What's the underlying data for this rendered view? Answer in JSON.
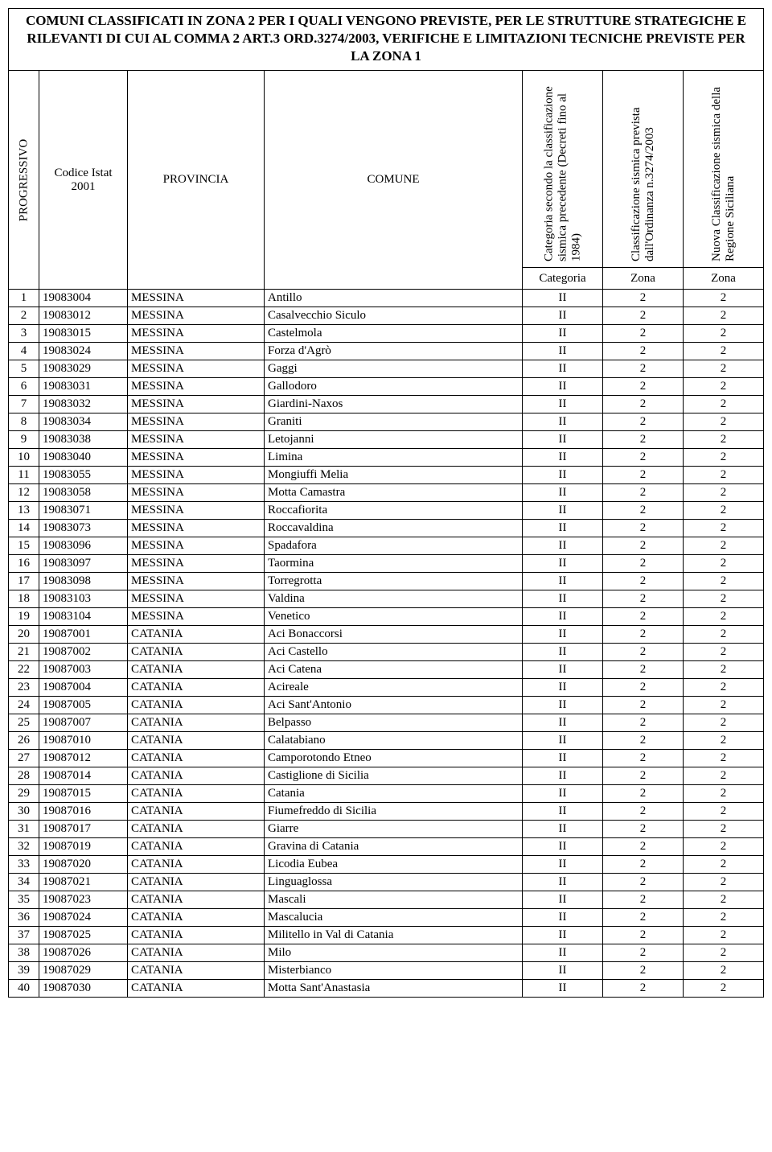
{
  "title": "COMUNI CLASSIFICATI IN  ZONA 2 PER I QUALI VENGONO PREVISTE, PER LE STRUTTURE STRATEGICHE E RILEVANTI DI CUI AL COMMA 2 ART.3 ORD.3274/2003, VERIFICHE  E LIMITAZIONI TECNICHE  PREVISTE PER LA ZONA 1",
  "headers": {
    "progressivo": "PROGRESSIVO",
    "codice": "Codice Istat 2001",
    "provincia": "PROVINCIA",
    "comune": "COMUNE",
    "categoria": "Categoria secondo la classificazione sismica precedente (Decreti fino al 1984)",
    "classificazione": "Classificazione sismica prevista dall'Ordinanza n.3274/2003",
    "nuova": "Nuova Classificazione sismica della Regione Siciliana"
  },
  "subheaders": {
    "categoria": "Categoria",
    "zona1": "Zona",
    "zona2": "Zona"
  },
  "rows": [
    {
      "n": "1",
      "codice": "19083004",
      "prov": "MESSINA",
      "comune": "Antillo",
      "cat": "II",
      "cl": "2",
      "nu": "2"
    },
    {
      "n": "2",
      "codice": "19083012",
      "prov": "MESSINA",
      "comune": "Casalvecchio Siculo",
      "cat": "II",
      "cl": "2",
      "nu": "2"
    },
    {
      "n": "3",
      "codice": "19083015",
      "prov": "MESSINA",
      "comune": "Castelmola",
      "cat": "II",
      "cl": "2",
      "nu": "2"
    },
    {
      "n": "4",
      "codice": "19083024",
      "prov": "MESSINA",
      "comune": "Forza d'Agrò",
      "cat": "II",
      "cl": "2",
      "nu": "2"
    },
    {
      "n": "5",
      "codice": "19083029",
      "prov": "MESSINA",
      "comune": "Gaggi",
      "cat": "II",
      "cl": "2",
      "nu": "2"
    },
    {
      "n": "6",
      "codice": "19083031",
      "prov": "MESSINA",
      "comune": "Gallodoro",
      "cat": "II",
      "cl": "2",
      "nu": "2"
    },
    {
      "n": "7",
      "codice": "19083032",
      "prov": "MESSINA",
      "comune": "Giardini-Naxos",
      "cat": "II",
      "cl": "2",
      "nu": "2"
    },
    {
      "n": "8",
      "codice": "19083034",
      "prov": "MESSINA",
      "comune": "Graniti",
      "cat": "II",
      "cl": "2",
      "nu": "2"
    },
    {
      "n": "9",
      "codice": "19083038",
      "prov": "MESSINA",
      "comune": "Letojanni",
      "cat": "II",
      "cl": "2",
      "nu": "2"
    },
    {
      "n": "10",
      "codice": "19083040",
      "prov": "MESSINA",
      "comune": "Limina",
      "cat": "II",
      "cl": "2",
      "nu": "2"
    },
    {
      "n": "11",
      "codice": "19083055",
      "prov": "MESSINA",
      "comune": "Mongiuffi Melia",
      "cat": "II",
      "cl": "2",
      "nu": "2"
    },
    {
      "n": "12",
      "codice": "19083058",
      "prov": "MESSINA",
      "comune": "Motta Camastra",
      "cat": "II",
      "cl": "2",
      "nu": "2"
    },
    {
      "n": "13",
      "codice": "19083071",
      "prov": "MESSINA",
      "comune": "Roccafiorita",
      "cat": "II",
      "cl": "2",
      "nu": "2"
    },
    {
      "n": "14",
      "codice": "19083073",
      "prov": "MESSINA",
      "comune": "Roccavaldina",
      "cat": "II",
      "cl": "2",
      "nu": "2"
    },
    {
      "n": "15",
      "codice": "19083096",
      "prov": "MESSINA",
      "comune": "Spadafora",
      "cat": "II",
      "cl": "2",
      "nu": "2"
    },
    {
      "n": "16",
      "codice": "19083097",
      "prov": "MESSINA",
      "comune": "Taormina",
      "cat": "II",
      "cl": "2",
      "nu": "2"
    },
    {
      "n": "17",
      "codice": "19083098",
      "prov": "MESSINA",
      "comune": "Torregrotta",
      "cat": "II",
      "cl": "2",
      "nu": "2"
    },
    {
      "n": "18",
      "codice": "19083103",
      "prov": "MESSINA",
      "comune": "Valdina",
      "cat": "II",
      "cl": "2",
      "nu": "2"
    },
    {
      "n": "19",
      "codice": "19083104",
      "prov": "MESSINA",
      "comune": "Venetico",
      "cat": "II",
      "cl": "2",
      "nu": "2"
    },
    {
      "n": "20",
      "codice": "19087001",
      "prov": "CATANIA",
      "comune": "Aci Bonaccorsi",
      "cat": "II",
      "cl": "2",
      "nu": "2"
    },
    {
      "n": "21",
      "codice": "19087002",
      "prov": "CATANIA",
      "comune": "Aci Castello",
      "cat": "II",
      "cl": "2",
      "nu": "2"
    },
    {
      "n": "22",
      "codice": "19087003",
      "prov": "CATANIA",
      "comune": "Aci Catena",
      "cat": "II",
      "cl": "2",
      "nu": "2"
    },
    {
      "n": "23",
      "codice": "19087004",
      "prov": "CATANIA",
      "comune": "Acireale",
      "cat": "II",
      "cl": "2",
      "nu": "2"
    },
    {
      "n": "24",
      "codice": "19087005",
      "prov": "CATANIA",
      "comune": "Aci Sant'Antonio",
      "cat": "II",
      "cl": "2",
      "nu": "2"
    },
    {
      "n": "25",
      "codice": "19087007",
      "prov": "CATANIA",
      "comune": "Belpasso",
      "cat": "II",
      "cl": "2",
      "nu": "2"
    },
    {
      "n": "26",
      "codice": "19087010",
      "prov": "CATANIA",
      "comune": "Calatabiano",
      "cat": "II",
      "cl": "2",
      "nu": "2"
    },
    {
      "n": "27",
      "codice": "19087012",
      "prov": "CATANIA",
      "comune": "Camporotondo Etneo",
      "cat": "II",
      "cl": "2",
      "nu": "2"
    },
    {
      "n": "28",
      "codice": "19087014",
      "prov": "CATANIA",
      "comune": "Castiglione di Sicilia",
      "cat": "II",
      "cl": "2",
      "nu": "2"
    },
    {
      "n": "29",
      "codice": "19087015",
      "prov": "CATANIA",
      "comune": "Catania",
      "cat": "II",
      "cl": "2",
      "nu": "2"
    },
    {
      "n": "30",
      "codice": "19087016",
      "prov": "CATANIA",
      "comune": "Fiumefreddo di Sicilia",
      "cat": "II",
      "cl": "2",
      "nu": "2"
    },
    {
      "n": "31",
      "codice": "19087017",
      "prov": "CATANIA",
      "comune": "Giarre",
      "cat": "II",
      "cl": "2",
      "nu": "2"
    },
    {
      "n": "32",
      "codice": "19087019",
      "prov": "CATANIA",
      "comune": "Gravina di Catania",
      "cat": "II",
      "cl": "2",
      "nu": "2"
    },
    {
      "n": "33",
      "codice": "19087020",
      "prov": "CATANIA",
      "comune": "Licodia Eubea",
      "cat": "II",
      "cl": "2",
      "nu": "2"
    },
    {
      "n": "34",
      "codice": "19087021",
      "prov": "CATANIA",
      "comune": "Linguaglossa",
      "cat": "II",
      "cl": "2",
      "nu": "2"
    },
    {
      "n": "35",
      "codice": "19087023",
      "prov": "CATANIA",
      "comune": "Mascali",
      "cat": "II",
      "cl": "2",
      "nu": "2"
    },
    {
      "n": "36",
      "codice": "19087024",
      "prov": "CATANIA",
      "comune": "Mascalucia",
      "cat": "II",
      "cl": "2",
      "nu": "2"
    },
    {
      "n": "37",
      "codice": "19087025",
      "prov": "CATANIA",
      "comune": "Militello in Val di Catania",
      "cat": "II",
      "cl": "2",
      "nu": "2"
    },
    {
      "n": "38",
      "codice": "19087026",
      "prov": "CATANIA",
      "comune": "Milo",
      "cat": "II",
      "cl": "2",
      "nu": "2"
    },
    {
      "n": "39",
      "codice": "19087029",
      "prov": "CATANIA",
      "comune": "Misterbianco",
      "cat": "II",
      "cl": "2",
      "nu": "2"
    },
    {
      "n": "40",
      "codice": "19087030",
      "prov": "CATANIA",
      "comune": "Motta Sant'Anastasia",
      "cat": "II",
      "cl": "2",
      "nu": "2"
    }
  ]
}
